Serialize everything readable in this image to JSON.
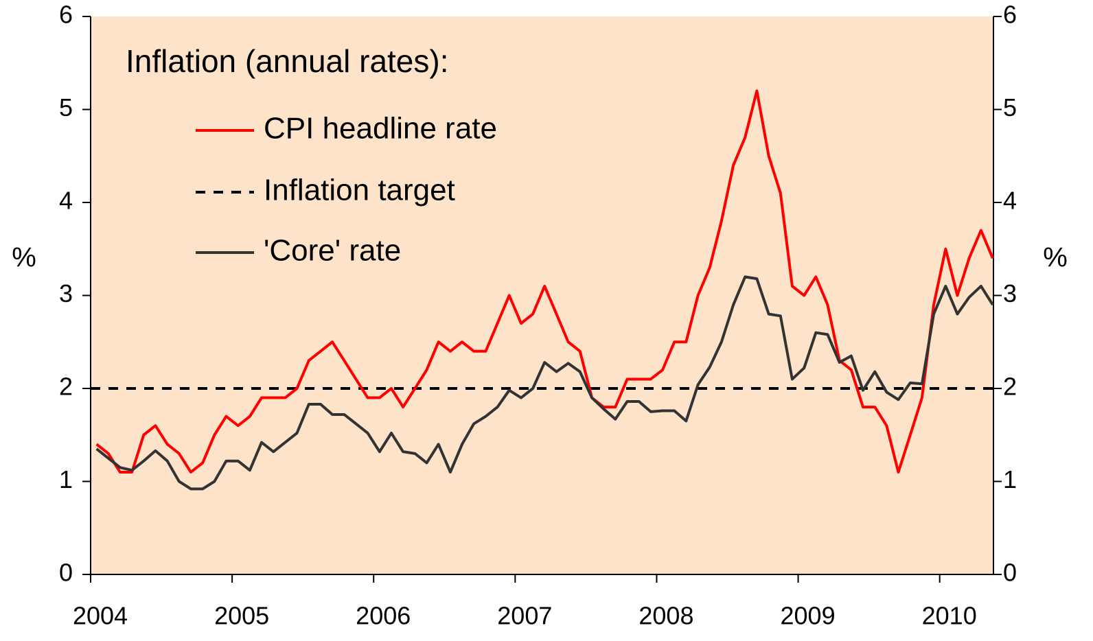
{
  "chart_data": {
    "type": "line",
    "legend_title": "Inflation (annual rates):",
    "ylabel": "%",
    "y2label": "%",
    "xlim": [
      2004,
      2010.38
    ],
    "xticks": [
      2004,
      2005,
      2006,
      2007,
      2008,
      2009,
      2010
    ],
    "ylim": [
      0,
      6
    ],
    "yticks": [
      0,
      1,
      2,
      3,
      4,
      5,
      6
    ],
    "y2lim": [
      0,
      6
    ],
    "y2ticks": [
      0,
      1,
      2,
      3,
      4,
      5,
      6
    ],
    "background": "#fde3c9",
    "x": [
      2004.042,
      2004.125,
      2004.208,
      2004.292,
      2004.375,
      2004.458,
      2004.542,
      2004.625,
      2004.708,
      2004.792,
      2004.875,
      2004.958,
      2005.042,
      2005.125,
      2005.208,
      2005.292,
      2005.375,
      2005.458,
      2005.542,
      2005.625,
      2005.708,
      2005.792,
      2005.875,
      2005.958,
      2006.042,
      2006.125,
      2006.208,
      2006.292,
      2006.375,
      2006.458,
      2006.542,
      2006.625,
      2006.708,
      2006.792,
      2006.875,
      2006.958,
      2007.042,
      2007.125,
      2007.208,
      2007.292,
      2007.375,
      2007.458,
      2007.542,
      2007.625,
      2007.708,
      2007.792,
      2007.875,
      2007.958,
      2008.042,
      2008.125,
      2008.208,
      2008.292,
      2008.375,
      2008.458,
      2008.542,
      2008.625,
      2008.708,
      2008.792,
      2008.875,
      2008.958,
      2009.042,
      2009.125,
      2009.208,
      2009.292,
      2009.375,
      2009.458,
      2009.542,
      2009.625,
      2009.708,
      2009.792,
      2009.875,
      2009.958,
      2010.042,
      2010.125,
      2010.208,
      2010.292,
      2010.375
    ],
    "series": [
      {
        "name": "CPI headline rate",
        "color": "#ff0000",
        "values": [
          1.4,
          1.3,
          1.1,
          1.1,
          1.5,
          1.6,
          1.4,
          1.3,
          1.1,
          1.2,
          1.5,
          1.7,
          1.6,
          1.7,
          1.9,
          1.9,
          1.9,
          2.0,
          2.3,
          2.4,
          2.5,
          2.3,
          2.1,
          1.9,
          1.9,
          2.0,
          1.8,
          2.0,
          2.2,
          2.5,
          2.4,
          2.5,
          2.4,
          2.4,
          2.7,
          3.0,
          2.7,
          2.8,
          3.1,
          2.8,
          2.5,
          2.4,
          1.9,
          1.8,
          1.8,
          2.1,
          2.1,
          2.1,
          2.2,
          2.5,
          2.5,
          3.0,
          3.3,
          3.8,
          4.4,
          4.7,
          5.2,
          4.5,
          4.1,
          3.1,
          3.0,
          3.2,
          2.9,
          2.3,
          2.2,
          1.8,
          1.8,
          1.6,
          1.1,
          1.5,
          1.9,
          2.9,
          3.5,
          3.0,
          3.4,
          3.7,
          3.4
        ]
      },
      {
        "name": "'Core' rate",
        "color": "#333333",
        "values": [
          1.35,
          1.25,
          1.15,
          1.12,
          1.22,
          1.33,
          1.22,
          1.0,
          0.92,
          0.92,
          1.0,
          1.22,
          1.22,
          1.12,
          1.42,
          1.32,
          1.42,
          1.52,
          1.83,
          1.83,
          1.72,
          1.72,
          1.62,
          1.52,
          1.32,
          1.52,
          1.32,
          1.3,
          1.2,
          1.4,
          1.1,
          1.4,
          1.62,
          1.7,
          1.8,
          1.98,
          1.9,
          2.0,
          2.28,
          2.18,
          2.27,
          2.18,
          1.9,
          1.78,
          1.67,
          1.86,
          1.86,
          1.75,
          1.76,
          1.76,
          1.65,
          2.04,
          2.23,
          2.5,
          2.9,
          3.2,
          3.18,
          2.8,
          2.78,
          2.1,
          2.22,
          2.6,
          2.58,
          2.28,
          2.35,
          1.98,
          2.18,
          1.96,
          1.88,
          2.06,
          2.05,
          2.8,
          3.1,
          2.8,
          2.98,
          3.1,
          2.9
        ]
      }
    ],
    "target": {
      "name": "Inflation target",
      "value": 2,
      "color": "#000000",
      "dashed": true
    }
  }
}
